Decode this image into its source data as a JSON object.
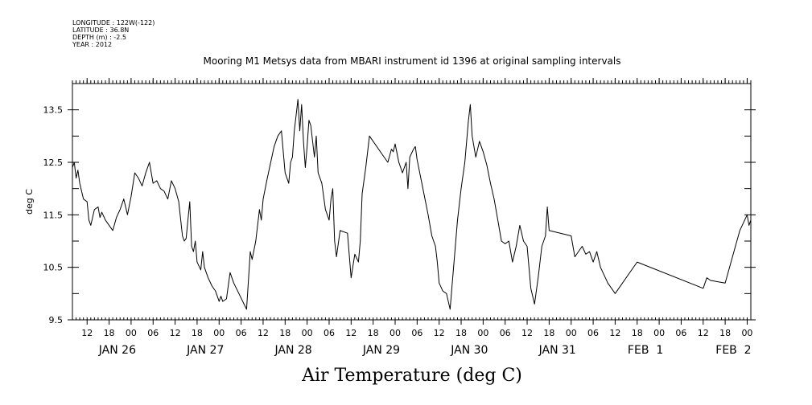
{
  "header": {
    "longitude": "LONGITUDE : 122W(-122)",
    "latitude": "LATITUDE : 36.8N",
    "depth": "DEPTH (m) : -2.5",
    "year": "YEAR : 2012"
  },
  "chart_data": {
    "type": "line",
    "title": "Mooring M1 Metsys data from MBARI instrument id 1396 at original sampling intervals",
    "xlabel": "Air Temperature (deg C)",
    "ylabel": "deg C",
    "ylim": [
      9.5,
      14.0
    ],
    "xlim": [
      "2012-01-25T08:00",
      "2012-02-02T01:00"
    ],
    "yticks": [
      "9.5",
      "10.5",
      "11.5",
      "12.5",
      "13.5"
    ],
    "hour_ticks": [
      {
        "t": "2012-01-25T12:00",
        "label": "12"
      },
      {
        "t": "2012-01-25T18:00",
        "label": "18"
      },
      {
        "t": "2012-01-26T00:00",
        "label": "00"
      },
      {
        "t": "2012-01-26T06:00",
        "label": "06"
      },
      {
        "t": "2012-01-26T12:00",
        "label": "12"
      },
      {
        "t": "2012-01-26T18:00",
        "label": "18"
      },
      {
        "t": "2012-01-27T00:00",
        "label": "00"
      },
      {
        "t": "2012-01-27T06:00",
        "label": "06"
      },
      {
        "t": "2012-01-27T12:00",
        "label": "12"
      },
      {
        "t": "2012-01-27T18:00",
        "label": "18"
      },
      {
        "t": "2012-01-28T00:00",
        "label": "00"
      },
      {
        "t": "2012-01-28T06:00",
        "label": "06"
      },
      {
        "t": "2012-01-28T12:00",
        "label": "12"
      },
      {
        "t": "2012-01-28T18:00",
        "label": "18"
      },
      {
        "t": "2012-01-29T00:00",
        "label": "00"
      },
      {
        "t": "2012-01-29T06:00",
        "label": "06"
      },
      {
        "t": "2012-01-29T12:00",
        "label": "12"
      },
      {
        "t": "2012-01-29T18:00",
        "label": "18"
      },
      {
        "t": "2012-01-30T00:00",
        "label": "00"
      },
      {
        "t": "2012-01-30T06:00",
        "label": "06"
      },
      {
        "t": "2012-01-30T12:00",
        "label": "12"
      },
      {
        "t": "2012-01-30T18:00",
        "label": "18"
      },
      {
        "t": "2012-01-31T00:00",
        "label": "00"
      },
      {
        "t": "2012-01-31T06:00",
        "label": "06"
      },
      {
        "t": "2012-01-31T12:00",
        "label": "12"
      },
      {
        "t": "2012-01-31T18:00",
        "label": "18"
      },
      {
        "t": "2012-02-01T00:00",
        "label": "00"
      },
      {
        "t": "2012-02-01T06:00",
        "label": "06"
      },
      {
        "t": "2012-02-01T12:00",
        "label": "12"
      },
      {
        "t": "2012-02-01T18:00",
        "label": "18"
      },
      {
        "t": "2012-02-02T00:00",
        "label": "00"
      }
    ],
    "day_labels": [
      {
        "t": "2012-01-26T00:00",
        "label": "JAN 26"
      },
      {
        "t": "2012-01-27T00:00",
        "label": "JAN 27"
      },
      {
        "t": "2012-01-28T00:00",
        "label": "JAN 28"
      },
      {
        "t": "2012-01-29T00:00",
        "label": "JAN 29"
      },
      {
        "t": "2012-01-30T00:00",
        "label": "JAN 30"
      },
      {
        "t": "2012-01-31T00:00",
        "label": "JAN 31"
      },
      {
        "t": "2012-02-01T00:00",
        "label": "FEB  1"
      },
      {
        "t": "2012-02-02T00:00",
        "label": "FEB  2"
      }
    ],
    "series": [
      {
        "color": "#000000",
        "points": [
          [
            "2012-01-25T08:00",
            12.4
          ],
          [
            "2012-01-25T08:30",
            12.5
          ],
          [
            "2012-01-25T09:00",
            12.2
          ],
          [
            "2012-01-25T09:30",
            12.35
          ],
          [
            "2012-01-25T10:00",
            12.1
          ],
          [
            "2012-01-25T11:00",
            11.8
          ],
          [
            "2012-01-25T12:00",
            11.75
          ],
          [
            "2012-01-25T12:30",
            11.4
          ],
          [
            "2012-01-25T13:00",
            11.3
          ],
          [
            "2012-01-25T14:00",
            11.6
          ],
          [
            "2012-01-25T15:00",
            11.65
          ],
          [
            "2012-01-25T15:30",
            11.45
          ],
          [
            "2012-01-25T16:00",
            11.55
          ],
          [
            "2012-01-25T17:00",
            11.4
          ],
          [
            "2012-01-25T18:00",
            11.3
          ],
          [
            "2012-01-25T19:00",
            11.2
          ],
          [
            "2012-01-25T20:00",
            11.45
          ],
          [
            "2012-01-25T21:00",
            11.6
          ],
          [
            "2012-01-25T22:00",
            11.8
          ],
          [
            "2012-01-25T23:00",
            11.5
          ],
          [
            "2012-01-26T00:00",
            11.85
          ],
          [
            "2012-01-26T01:00",
            12.3
          ],
          [
            "2012-01-26T02:00",
            12.2
          ],
          [
            "2012-01-26T03:00",
            12.05
          ],
          [
            "2012-01-26T04:00",
            12.3
          ],
          [
            "2012-01-26T05:00",
            12.5
          ],
          [
            "2012-01-26T06:00",
            12.1
          ],
          [
            "2012-01-26T07:00",
            12.15
          ],
          [
            "2012-01-26T08:00",
            12.0
          ],
          [
            "2012-01-26T09:00",
            11.95
          ],
          [
            "2012-01-26T10:00",
            11.8
          ],
          [
            "2012-01-26T11:00",
            12.15
          ],
          [
            "2012-01-26T12:00",
            12.0
          ],
          [
            "2012-01-26T13:00",
            11.75
          ],
          [
            "2012-01-26T14:00",
            11.1
          ],
          [
            "2012-01-26T14:30",
            11.0
          ],
          [
            "2012-01-26T15:00",
            11.05
          ],
          [
            "2012-01-26T15:30",
            11.4
          ],
          [
            "2012-01-26T16:00",
            11.75
          ],
          [
            "2012-01-26T16:30",
            10.9
          ],
          [
            "2012-01-26T17:00",
            10.8
          ],
          [
            "2012-01-26T17:30",
            11.0
          ],
          [
            "2012-01-26T18:00",
            10.6
          ],
          [
            "2012-01-26T19:00",
            10.45
          ],
          [
            "2012-01-26T19:30",
            10.8
          ],
          [
            "2012-01-26T20:00",
            10.5
          ],
          [
            "2012-01-26T21:00",
            10.3
          ],
          [
            "2012-01-26T22:00",
            10.15
          ],
          [
            "2012-01-26T23:00",
            10.05
          ],
          [
            "2012-01-27T00:00",
            9.85
          ],
          [
            "2012-01-27T00:30",
            9.95
          ],
          [
            "2012-01-27T01:00",
            9.85
          ],
          [
            "2012-01-27T02:00",
            9.9
          ],
          [
            "2012-01-27T03:00",
            10.4
          ],
          [
            "2012-01-27T04:00",
            10.2
          ],
          [
            "2012-01-27T07:30",
            9.7
          ],
          [
            "2012-01-27T08:30",
            10.8
          ],
          [
            "2012-01-27T09:00",
            10.65
          ],
          [
            "2012-01-27T10:00",
            11.0
          ],
          [
            "2012-01-27T11:00",
            11.6
          ],
          [
            "2012-01-27T11:30",
            11.4
          ],
          [
            "2012-01-27T12:00",
            11.8
          ],
          [
            "2012-01-27T13:00",
            12.15
          ],
          [
            "2012-01-27T15:00",
            12.8
          ],
          [
            "2012-01-27T16:00",
            13.0
          ],
          [
            "2012-01-27T17:00",
            13.1
          ],
          [
            "2012-01-27T18:00",
            12.3
          ],
          [
            "2012-01-27T19:00",
            12.1
          ],
          [
            "2012-01-27T19:30",
            12.5
          ],
          [
            "2012-01-27T20:00",
            12.6
          ],
          [
            "2012-01-27T20:30",
            13.1
          ],
          [
            "2012-01-27T21:00",
            13.4
          ],
          [
            "2012-01-27T21:30",
            13.7
          ],
          [
            "2012-01-27T22:00",
            13.1
          ],
          [
            "2012-01-27T22:30",
            13.6
          ],
          [
            "2012-01-27T23:00",
            12.9
          ],
          [
            "2012-01-27T23:30",
            12.4
          ],
          [
            "2012-01-28T00:00",
            12.8
          ],
          [
            "2012-01-28T00:30",
            13.3
          ],
          [
            "2012-01-28T01:00",
            13.2
          ],
          [
            "2012-01-28T02:00",
            12.6
          ],
          [
            "2012-01-28T02:30",
            13.0
          ],
          [
            "2012-01-28T03:00",
            12.3
          ],
          [
            "2012-01-28T04:00",
            12.1
          ],
          [
            "2012-01-28T05:00",
            11.6
          ],
          [
            "2012-01-28T06:00",
            11.4
          ],
          [
            "2012-01-28T06:30",
            11.8
          ],
          [
            "2012-01-28T07:00",
            12.0
          ],
          [
            "2012-01-28T07:30",
            11.0
          ],
          [
            "2012-01-28T08:00",
            10.7
          ],
          [
            "2012-01-28T09:00",
            11.2
          ],
          [
            "2012-01-28T11:00",
            11.15
          ],
          [
            "2012-01-28T12:00",
            10.3
          ],
          [
            "2012-01-28T13:00",
            10.75
          ],
          [
            "2012-01-28T14:00",
            10.6
          ],
          [
            "2012-01-28T14:30",
            11.0
          ],
          [
            "2012-01-28T15:00",
            11.9
          ],
          [
            "2012-01-28T16:00",
            12.4
          ],
          [
            "2012-01-28T17:00",
            13.0
          ],
          [
            "2012-01-28T21:00",
            12.6
          ],
          [
            "2012-01-28T22:00",
            12.5
          ],
          [
            "2012-01-28T23:00",
            12.75
          ],
          [
            "2012-01-28T23:30",
            12.7
          ],
          [
            "2012-01-29T00:00",
            12.85
          ],
          [
            "2012-01-29T01:00",
            12.5
          ],
          [
            "2012-01-29T02:00",
            12.3
          ],
          [
            "2012-01-29T03:00",
            12.5
          ],
          [
            "2012-01-29T03:30",
            12.0
          ],
          [
            "2012-01-29T04:00",
            12.6
          ],
          [
            "2012-01-29T05:00",
            12.75
          ],
          [
            "2012-01-29T05:30",
            12.8
          ],
          [
            "2012-01-29T06:00",
            12.55
          ],
          [
            "2012-01-29T07:00",
            12.2
          ],
          [
            "2012-01-29T09:00",
            11.5
          ],
          [
            "2012-01-29T10:00",
            11.1
          ],
          [
            "2012-01-29T11:00",
            10.9
          ],
          [
            "2012-01-29T11:30",
            10.6
          ],
          [
            "2012-01-29T12:00",
            10.2
          ],
          [
            "2012-01-29T13:00",
            10.05
          ],
          [
            "2012-01-29T14:00",
            10.0
          ],
          [
            "2012-01-29T15:00",
            9.7
          ],
          [
            "2012-01-29T17:00",
            11.4
          ],
          [
            "2012-01-29T18:00",
            12.0
          ],
          [
            "2012-01-29T19:00",
            12.5
          ],
          [
            "2012-01-29T20:00",
            13.3
          ],
          [
            "2012-01-29T20:30",
            13.6
          ],
          [
            "2012-01-29T21:00",
            13.0
          ],
          [
            "2012-01-29T22:00",
            12.6
          ],
          [
            "2012-01-29T23:00",
            12.9
          ],
          [
            "2012-01-30T00:00",
            12.7
          ],
          [
            "2012-01-30T01:00",
            12.45
          ],
          [
            "2012-01-30T02:00",
            12.1
          ],
          [
            "2012-01-30T03:00",
            11.8
          ],
          [
            "2012-01-30T04:00",
            11.4
          ],
          [
            "2012-01-30T05:00",
            11.0
          ],
          [
            "2012-01-30T06:00",
            10.95
          ],
          [
            "2012-01-30T07:00",
            11.0
          ],
          [
            "2012-01-30T08:00",
            10.6
          ],
          [
            "2012-01-30T09:00",
            10.9
          ],
          [
            "2012-01-30T10:00",
            11.3
          ],
          [
            "2012-01-30T11:00",
            11.0
          ],
          [
            "2012-01-30T12:00",
            10.9
          ],
          [
            "2012-01-30T13:00",
            10.1
          ],
          [
            "2012-01-30T14:00",
            9.8
          ],
          [
            "2012-01-30T15:00",
            10.3
          ],
          [
            "2012-01-30T16:00",
            10.9
          ],
          [
            "2012-01-30T17:00",
            11.1
          ],
          [
            "2012-01-30T17:30",
            11.65
          ],
          [
            "2012-01-30T18:00",
            11.2
          ],
          [
            "2012-01-31T00:00",
            11.1
          ],
          [
            "2012-01-31T01:00",
            10.7
          ],
          [
            "2012-01-31T03:00",
            10.9
          ],
          [
            "2012-01-31T04:00",
            10.75
          ],
          [
            "2012-01-31T05:00",
            10.8
          ],
          [
            "2012-01-31T06:00",
            10.6
          ],
          [
            "2012-01-31T07:00",
            10.8
          ],
          [
            "2012-01-31T08:00",
            10.5
          ],
          [
            "2012-01-31T10:00",
            10.2
          ],
          [
            "2012-01-31T12:00",
            10.0
          ],
          [
            "2012-01-31T18:00",
            10.6
          ],
          [
            "2012-02-01T12:00",
            10.1
          ],
          [
            "2012-02-01T13:00",
            10.3
          ],
          [
            "2012-02-01T14:00",
            10.25
          ],
          [
            "2012-02-01T18:00",
            10.2
          ],
          [
            "2012-02-01T22:00",
            11.2
          ],
          [
            "2012-02-02T00:00",
            11.5
          ],
          [
            "2012-02-02T00:30",
            11.3
          ],
          [
            "2012-02-02T01:00",
            11.4
          ]
        ]
      }
    ]
  }
}
